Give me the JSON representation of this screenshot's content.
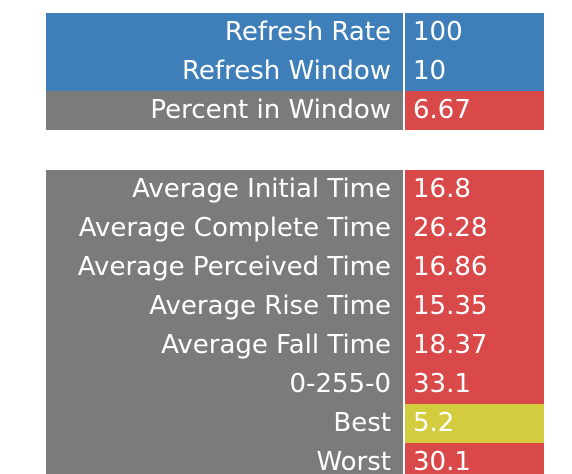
{
  "colors": {
    "blue": "#3f7fb9",
    "gray": "#7b7b7b",
    "red": "#d9494a",
    "yellow": "#d4cc3f"
  },
  "settings": {
    "refresh_rate": {
      "label": "Refresh Rate",
      "value": "100"
    },
    "refresh_window": {
      "label": "Refresh Window",
      "value": "10"
    },
    "percent_in_window": {
      "label": "Percent in Window",
      "value": "6.67"
    }
  },
  "results": {
    "average_initial_time": {
      "label": "Average Initial Time",
      "value": "16.8"
    },
    "average_complete_time": {
      "label": "Average Complete Time",
      "value": "26.28"
    },
    "average_perceived_time": {
      "label": "Average Perceived Time",
      "value": "16.86"
    },
    "average_rise_time": {
      "label": "Average Rise Time",
      "value": "15.35"
    },
    "average_fall_time": {
      "label": "Average Fall Time",
      "value": "18.37"
    },
    "transition_0_255_0": {
      "label": "0-255-0",
      "value": "33.1"
    },
    "best": {
      "label": "Best",
      "value": "5.2"
    },
    "worst": {
      "label": "Worst",
      "value": "30.1"
    }
  }
}
